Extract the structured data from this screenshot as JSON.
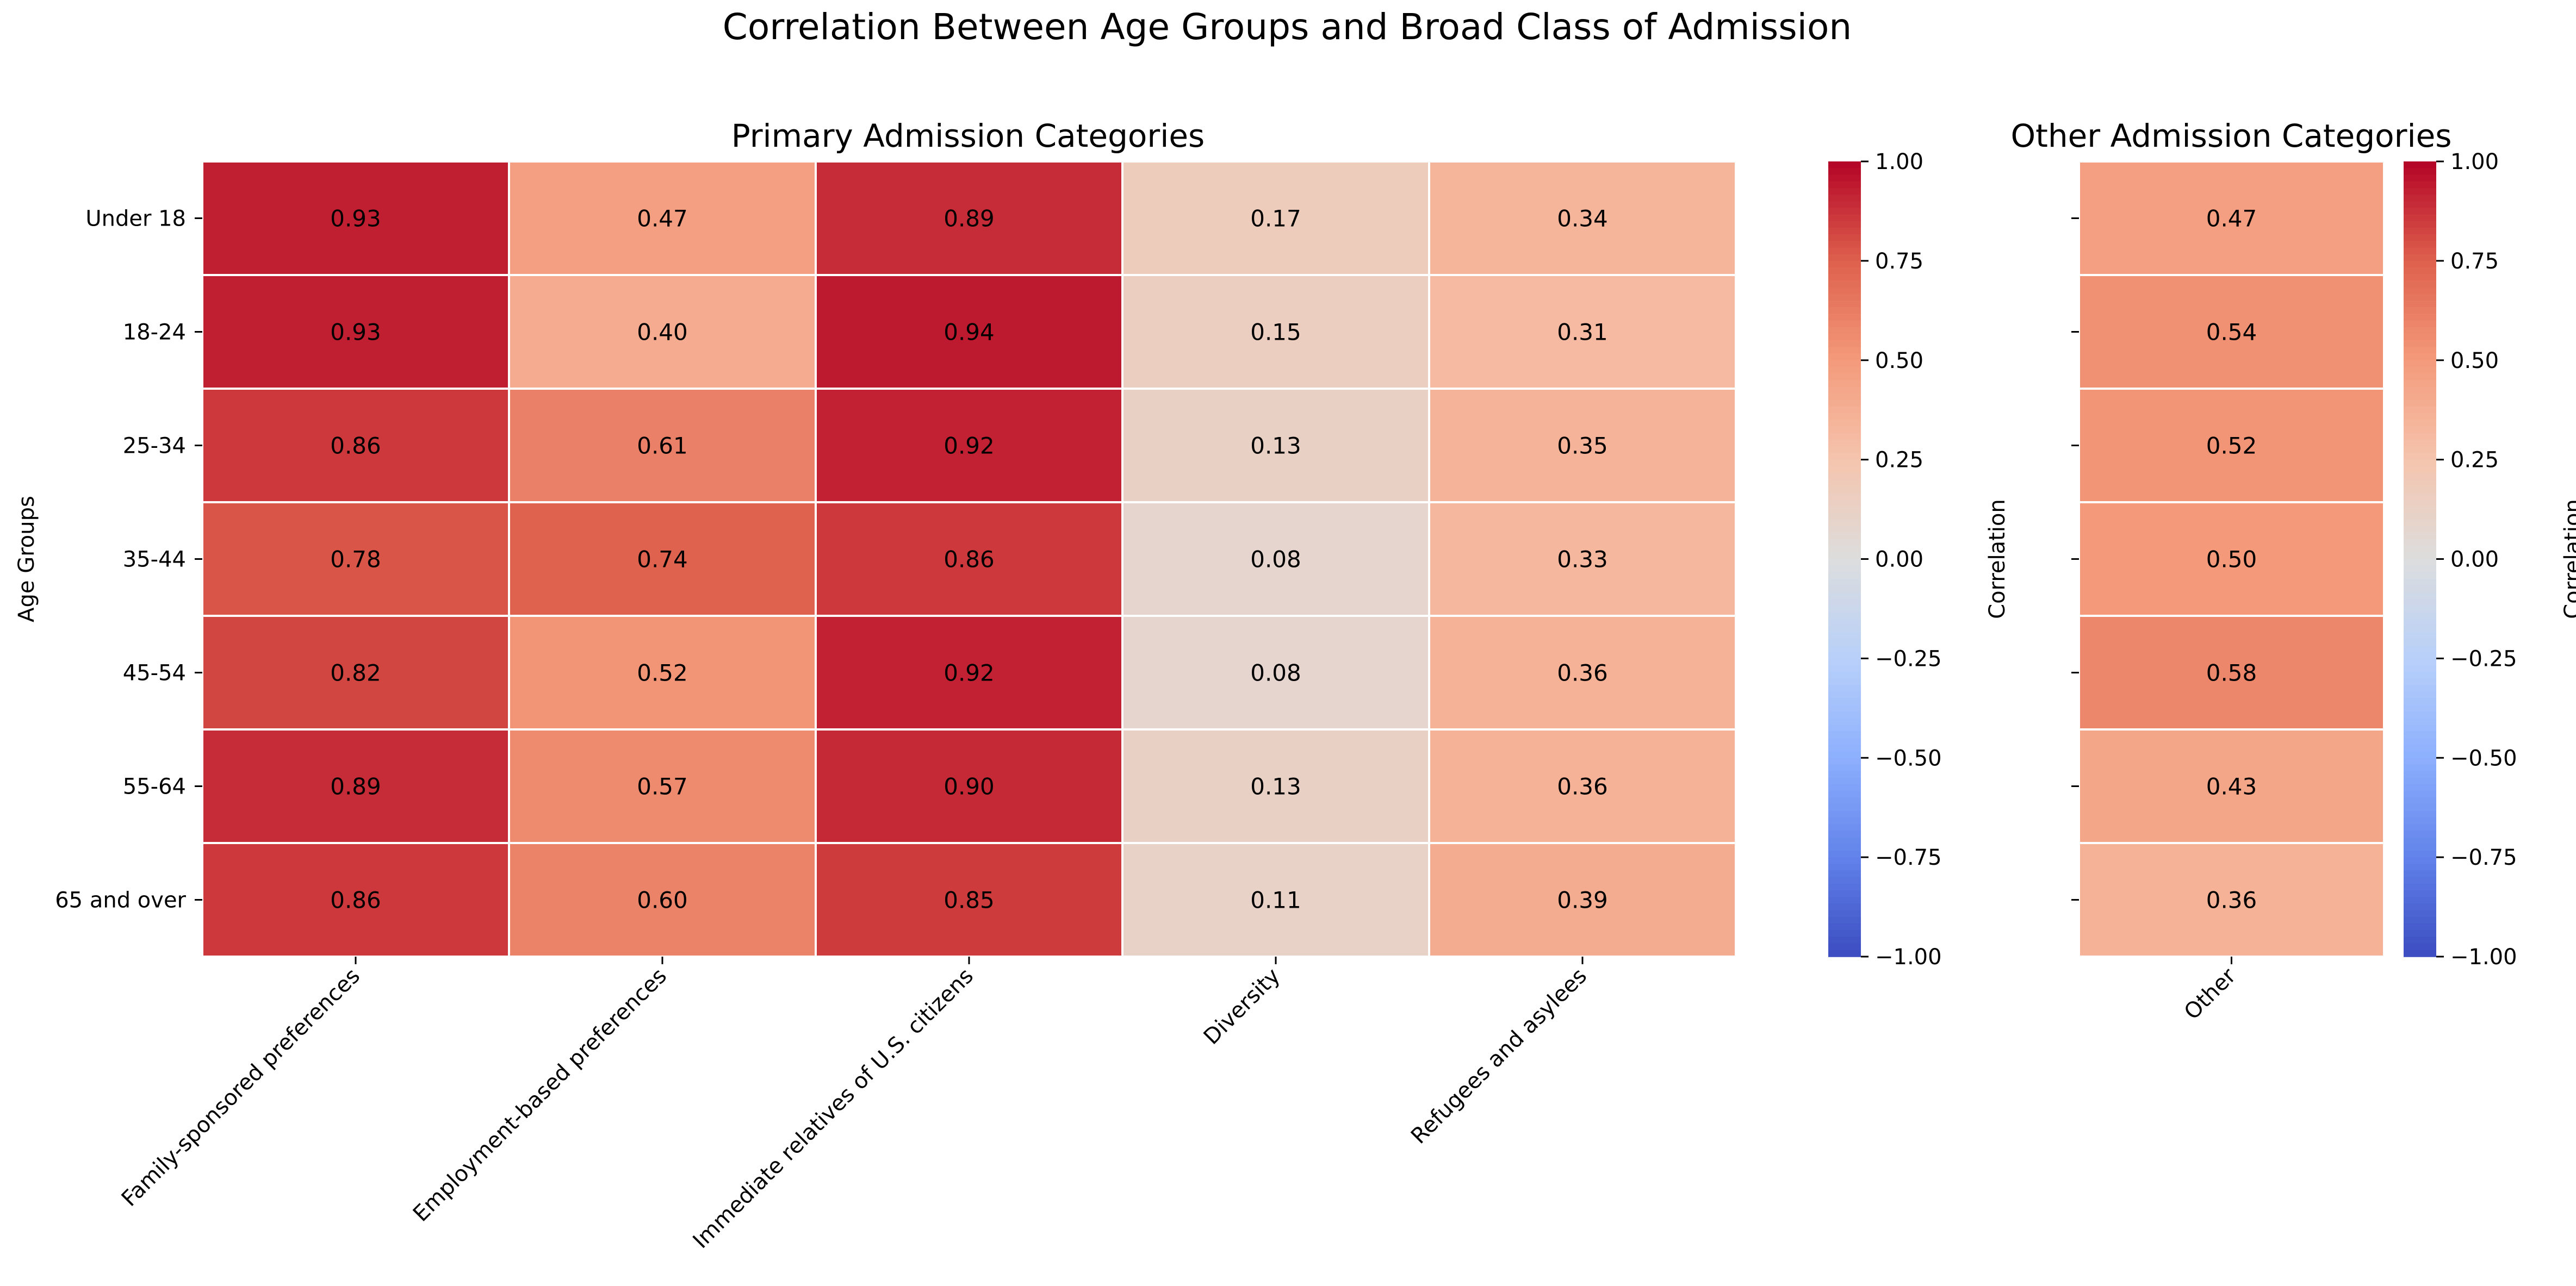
{
  "title": "Correlation Between Age Groups and Broad Class of Admission",
  "chart_data": [
    {
      "type": "heatmap",
      "title": "Primary Admission Categories",
      "ylabel": "Age Groups",
      "xlabel": "",
      "rows": [
        "Under 18",
        "18-24",
        "25-34",
        "35-44",
        "45-54",
        "55-64",
        "65 and over"
      ],
      "columns": [
        "Family-sponsored preferences",
        "Employment-based preferences",
        "Immediate relatives of U.S. citizens",
        "Diversity",
        "Refugees and asylees"
      ],
      "values": [
        [
          0.93,
          0.47,
          0.89,
          0.17,
          0.34
        ],
        [
          0.93,
          0.4,
          0.94,
          0.15,
          0.31
        ],
        [
          0.86,
          0.61,
          0.92,
          0.13,
          0.35
        ],
        [
          0.78,
          0.74,
          0.86,
          0.08,
          0.33
        ],
        [
          0.82,
          0.52,
          0.92,
          0.08,
          0.36
        ],
        [
          0.89,
          0.57,
          0.9,
          0.13,
          0.36
        ],
        [
          0.86,
          0.6,
          0.85,
          0.11,
          0.39
        ]
      ],
      "value_format": "0.00",
      "colormap": "coolwarm",
      "vmin": -1.0,
      "vmax": 1.0,
      "colorbar_label": "Correlation",
      "colorbar_ticks": [
        "1.00",
        "0.75",
        "0.50",
        "0.25",
        "0.00",
        "−0.25",
        "−0.50",
        "−0.75",
        "−1.00"
      ]
    },
    {
      "type": "heatmap",
      "title": "Other Admission Categories",
      "ylabel": "",
      "xlabel": "",
      "rows": [
        "Under 18",
        "18-24",
        "25-34",
        "35-44",
        "45-54",
        "55-64",
        "65 and over"
      ],
      "columns": [
        "Other"
      ],
      "values": [
        [
          0.47
        ],
        [
          0.54
        ],
        [
          0.52
        ],
        [
          0.5
        ],
        [
          0.58
        ],
        [
          0.43
        ],
        [
          0.36
        ]
      ],
      "value_format": "0.00",
      "colormap": "coolwarm",
      "vmin": -1.0,
      "vmax": 1.0,
      "colorbar_label": "Correlation",
      "colorbar_ticks": [
        "1.00",
        "0.75",
        "0.50",
        "0.25",
        "0.00",
        "−0.25",
        "−0.50",
        "−0.75",
        "−1.00"
      ]
    }
  ]
}
